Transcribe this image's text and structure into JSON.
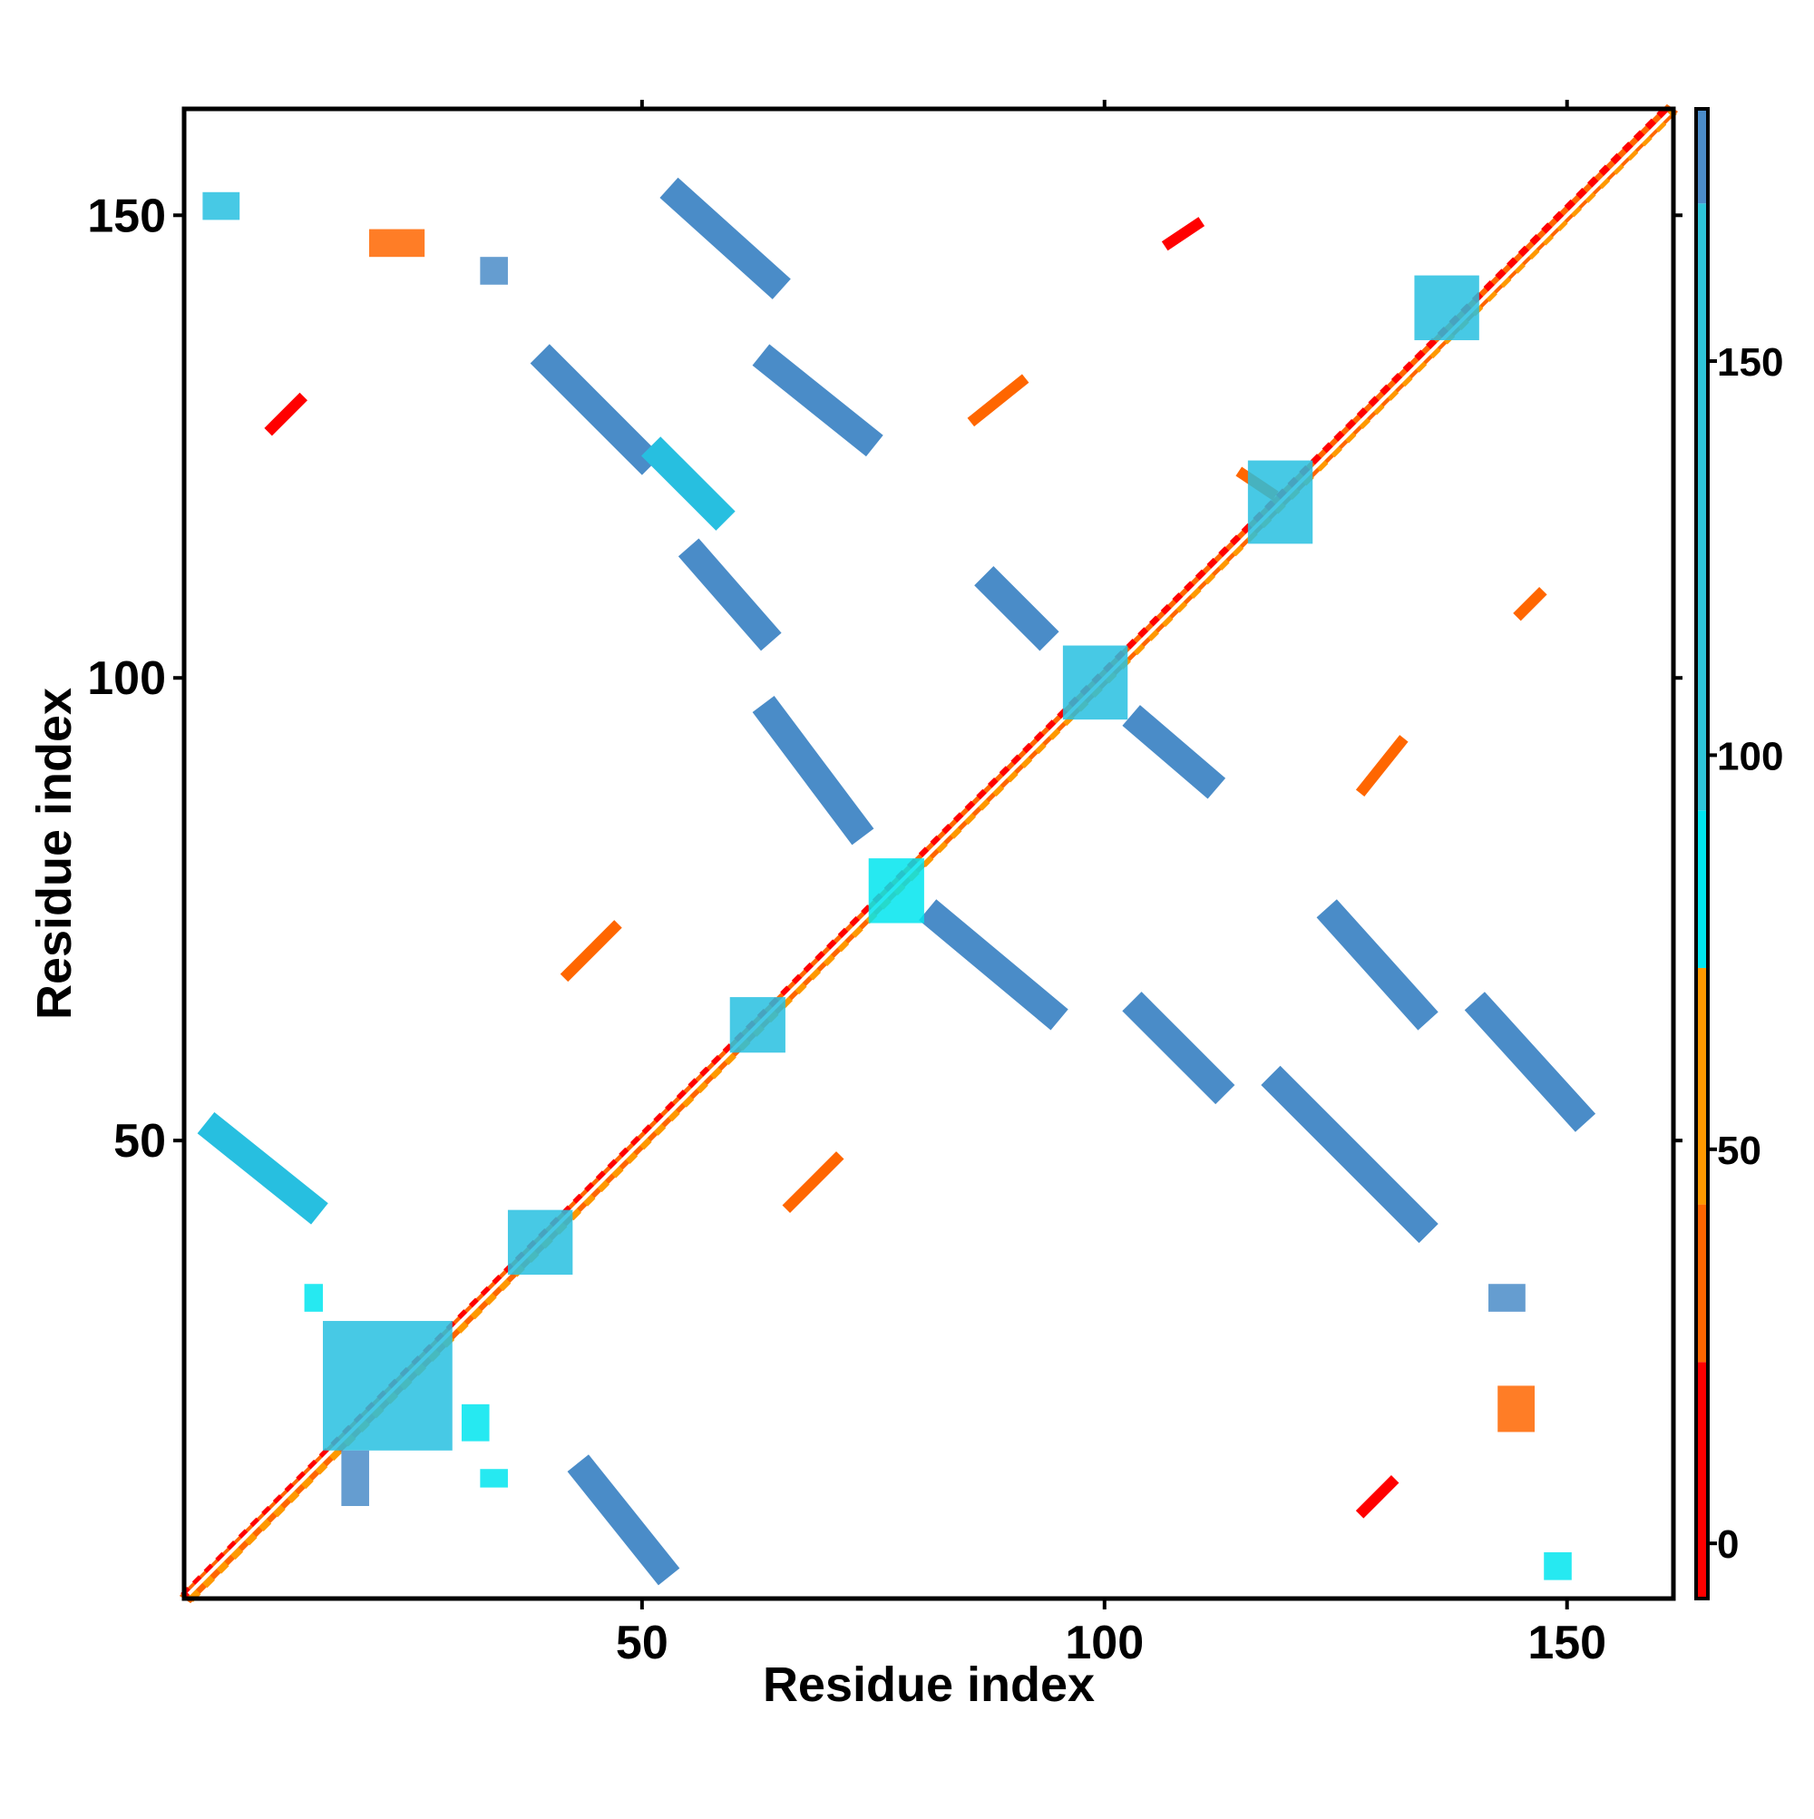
{
  "chart_data": {
    "type": "heatmap",
    "title": "",
    "xlabel": "Residue index",
    "ylabel": "Residue index",
    "xlim": [
      1,
      161
    ],
    "ylim": [
      1,
      161
    ],
    "x_ticks": [
      50,
      100,
      150
    ],
    "y_ticks": [
      50,
      100,
      150
    ],
    "grid": false,
    "colorbar": {
      "ticks": [
        0,
        50,
        100,
        150
      ],
      "range": [
        -7,
        182
      ],
      "bands": [
        {
          "from": -7,
          "to": 23,
          "color": "#ff0000"
        },
        {
          "from": 23,
          "to": 43,
          "color": "#ff6600"
        },
        {
          "from": 43,
          "to": 73,
          "color": "#ff9900"
        },
        {
          "from": 73,
          "to": 93,
          "color": "#00e5ee"
        },
        {
          "from": 93,
          "to": 170,
          "color": "#2ec4d8"
        },
        {
          "from": 170,
          "to": 182,
          "color": "#4b8bc8"
        }
      ]
    },
    "colors": {
      "red": "#ff0000",
      "orange": "#ff6600",
      "light_orange": "#ff9900",
      "cyan": "#00e5ee",
      "sky": "#27bfe0",
      "steel": "#4a8cc8"
    },
    "regions": [
      {
        "kind": "diagonal",
        "x": [
          1,
          161
        ],
        "y": [
          1,
          161
        ],
        "color": "orange"
      },
      {
        "kind": "segment",
        "x": [
          44,
          52
        ],
        "y": [
          14,
          4
        ],
        "color": "steel"
      },
      {
        "kind": "segment",
        "x": [
          4,
          14
        ],
        "y": [
          51,
          43
        ],
        "color": "sky"
      },
      {
        "kind": "segment",
        "x": [
          54,
          64
        ],
        "y": [
          152,
          143
        ],
        "color": "steel"
      },
      {
        "kind": "segment",
        "x": [
          40,
          50
        ],
        "y": [
          134,
          124
        ],
        "color": "steel"
      },
      {
        "kind": "segment",
        "x": [
          52,
          58
        ],
        "y": [
          124,
          118
        ],
        "color": "sky"
      },
      {
        "kind": "segment",
        "x": [
          64,
          74
        ],
        "y": [
          134,
          126
        ],
        "color": "steel"
      },
      {
        "kind": "segment",
        "x": [
          56,
          63
        ],
        "y": [
          113,
          105
        ],
        "color": "steel"
      },
      {
        "kind": "segment",
        "x": [
          64,
          73
        ],
        "y": [
          96,
          84
        ],
        "color": "steel"
      },
      {
        "kind": "segment",
        "x": [
          82,
          94
        ],
        "y": [
          74,
          64
        ],
        "color": "steel"
      },
      {
        "kind": "segment",
        "x": [
          104,
          112
        ],
        "y": [
          64,
          56
        ],
        "color": "steel"
      },
      {
        "kind": "segment",
        "x": [
          119,
          134
        ],
        "y": [
          56,
          41
        ],
        "color": "steel"
      },
      {
        "kind": "segment",
        "x": [
          125,
          134
        ],
        "y": [
          74,
          64
        ],
        "color": "steel"
      },
      {
        "kind": "segment",
        "x": [
          141,
          151
        ],
        "y": [
          64,
          53
        ],
        "color": "steel"
      },
      {
        "kind": "segment",
        "x": [
          88,
          93
        ],
        "y": [
          110,
          105
        ],
        "color": "steel"
      },
      {
        "kind": "segment",
        "x": [
          104,
          111
        ],
        "y": [
          95,
          89
        ],
        "color": "steel"
      },
      {
        "kind": "segment",
        "x": [
          115,
          118
        ],
        "y": [
          122,
          120
        ],
        "color": "orange"
      },
      {
        "kind": "segment",
        "x": [
          42,
          47
        ],
        "y": [
          68,
          73
        ],
        "color": "orange"
      },
      {
        "kind": "segment",
        "x": [
          66,
          71
        ],
        "y": [
          43,
          48
        ],
        "color": "orange"
      },
      {
        "kind": "segment",
        "x": [
          107,
          110
        ],
        "y": [
          147,
          149
        ],
        "color": "red"
      },
      {
        "kind": "segment",
        "x": [
          86,
          91
        ],
        "y": [
          128,
          132
        ],
        "color": "orange"
      },
      {
        "kind": "segment",
        "x": [
          10,
          13
        ],
        "y": [
          127,
          130
        ],
        "color": "red"
      },
      {
        "kind": "segment",
        "x": [
          128,
          132
        ],
        "y": [
          88,
          93
        ],
        "color": "orange"
      },
      {
        "kind": "segment",
        "x": [
          145,
          147
        ],
        "y": [
          107,
          109
        ],
        "color": "orange"
      },
      {
        "kind": "segment",
        "x": [
          128,
          131
        ],
        "y": [
          10,
          13
        ],
        "color": "red"
      },
      {
        "kind": "blob",
        "x": [
          3,
          6
        ],
        "y": [
          150,
          152
        ],
        "color": "sky"
      },
      {
        "kind": "blob",
        "x": [
          21,
          26
        ],
        "y": [
          146,
          148
        ],
        "color": "orange"
      },
      {
        "kind": "blob",
        "x": [
          33,
          35
        ],
        "y": [
          143,
          145
        ],
        "color": "steel"
      },
      {
        "kind": "blob",
        "x": [
          116,
          122
        ],
        "y": [
          115,
          123
        ],
        "color": "sky"
      },
      {
        "kind": "blob",
        "x": [
          96,
          102
        ],
        "y": [
          96,
          103
        ],
        "color": "sky"
      },
      {
        "kind": "blob",
        "x": [
          75,
          80
        ],
        "y": [
          74,
          80
        ],
        "color": "cyan"
      },
      {
        "kind": "blob",
        "x": [
          60,
          65
        ],
        "y": [
          60,
          65
        ],
        "color": "sky"
      },
      {
        "kind": "blob",
        "x": [
          36,
          42
        ],
        "y": [
          36,
          42
        ],
        "color": "sky"
      },
      {
        "kind": "blob",
        "x": [
          16,
          29
        ],
        "y": [
          17,
          30
        ],
        "color": "sky"
      },
      {
        "kind": "blob",
        "x": [
          18,
          20
        ],
        "y": [
          11,
          16
        ],
        "color": "steel"
      },
      {
        "kind": "blob",
        "x": [
          14,
          15
        ],
        "y": [
          32,
          34
        ],
        "color": "cyan"
      },
      {
        "kind": "blob",
        "x": [
          31,
          33
        ],
        "y": [
          18,
          21
        ],
        "color": "cyan"
      },
      {
        "kind": "blob",
        "x": [
          33,
          35
        ],
        "y": [
          13,
          14
        ],
        "color": "cyan"
      },
      {
        "kind": "blob",
        "x": [
          142,
          145
        ],
        "y": [
          32,
          34
        ],
        "color": "steel"
      },
      {
        "kind": "blob",
        "x": [
          143,
          146
        ],
        "y": [
          19,
          23
        ],
        "color": "orange"
      },
      {
        "kind": "blob",
        "x": [
          148,
          150
        ],
        "y": [
          3,
          5
        ],
        "color": "cyan"
      },
      {
        "kind": "blob",
        "x": [
          134,
          140
        ],
        "y": [
          137,
          143
        ],
        "color": "sky"
      }
    ]
  }
}
